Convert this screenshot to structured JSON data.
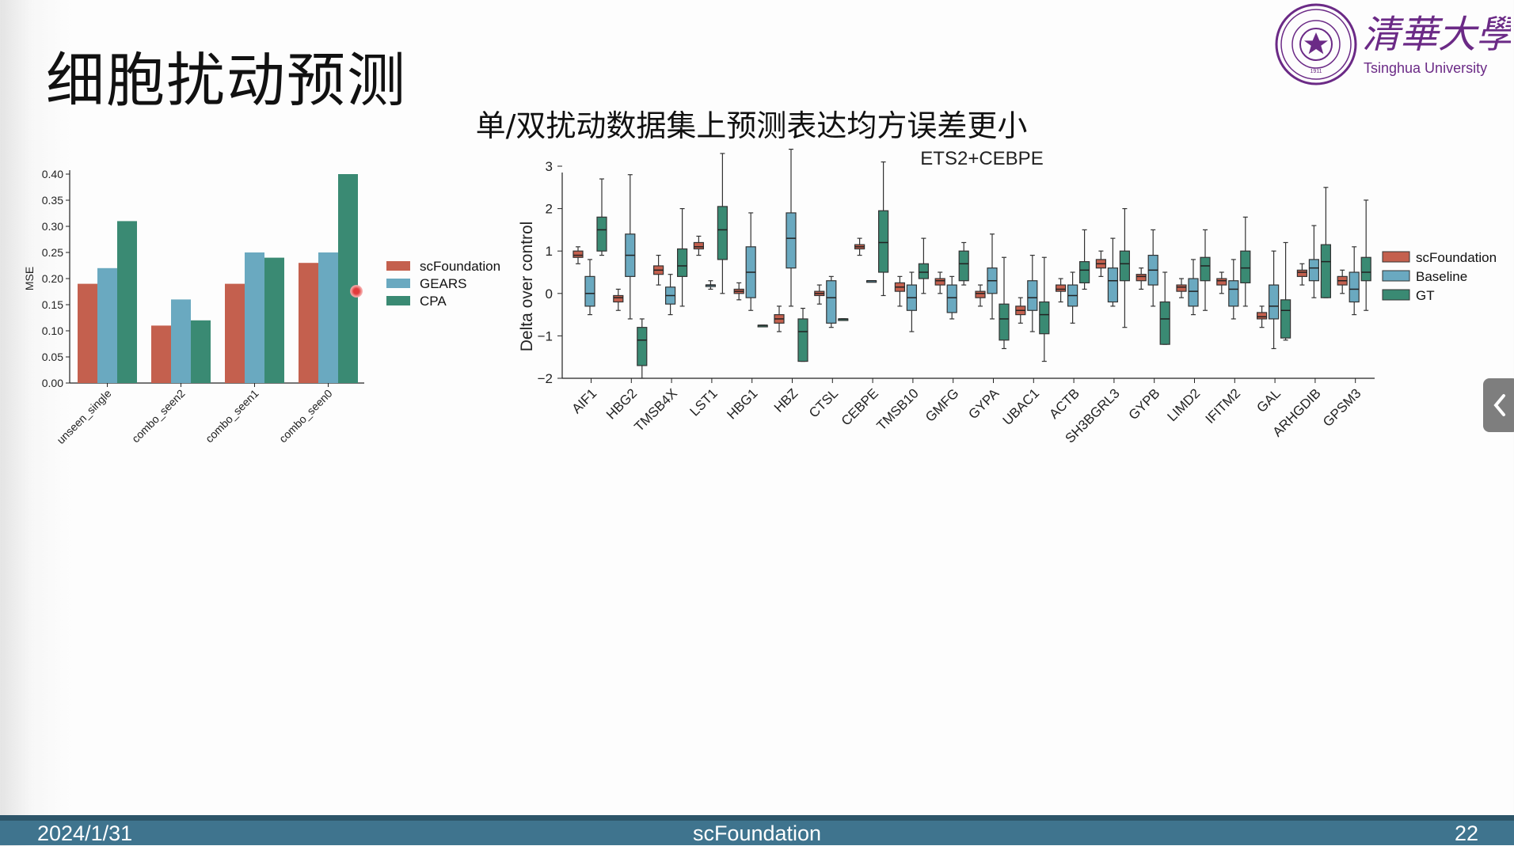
{
  "slide": {
    "title": "细胞扰动预测",
    "subtitle": "单/双扰动数据集上预测表达均方误差更小"
  },
  "logo": {
    "name_cn": "清華大學",
    "name_en": "Tsinghua University",
    "seal_year": "1911"
  },
  "footer": {
    "date": "2024/1/31",
    "center": "scFoundation",
    "page": "22"
  },
  "colors": {
    "scFoundation": "#c4604e",
    "GEARS": "#6aa9c0",
    "CPA": "#3a8a73",
    "footer": "#3f748e"
  },
  "chart_data": [
    {
      "type": "bar",
      "title": "",
      "xlabel": "",
      "ylabel": "MSE",
      "ylim": [
        0,
        0.4
      ],
      "yticks": [
        "0.00",
        "0.05",
        "0.10",
        "0.15",
        "0.20",
        "0.25",
        "0.30",
        "0.35",
        "0.40"
      ],
      "categories": [
        "unseen_single",
        "combo_seen2",
        "combo_seen1",
        "combo_seen0"
      ],
      "series": [
        {
          "name": "scFoundation",
          "color": "#c4604e",
          "values": [
            0.19,
            0.11,
            0.19,
            0.23
          ]
        },
        {
          "name": "GEARS",
          "color": "#6aa9c0",
          "values": [
            0.22,
            0.16,
            0.25,
            0.25
          ]
        },
        {
          "name": "CPA",
          "color": "#3a8a73",
          "values": [
            0.31,
            0.12,
            0.24,
            0.4
          ]
        }
      ],
      "legend": [
        "scFoundation",
        "GEARS",
        "CPA"
      ],
      "legend_position": "right"
    },
    {
      "type": "box",
      "title": "ETS2+CEBPE",
      "xlabel": "",
      "ylabel": "Delta over control",
      "ylim": [
        -2,
        3
      ],
      "yticks": [
        "−2",
        "−1",
        "0",
        "1",
        "2",
        "3"
      ],
      "categories": [
        "AIF1",
        "HBG2",
        "TMSB4X",
        "LST1",
        "HBG1",
        "HBZ",
        "CTSL",
        "CEBPE",
        "TMSB10",
        "GMFG",
        "GYPA",
        "UBAC1",
        "ACTB",
        "SH3BGRL3",
        "GYPB",
        "LIMD2",
        "IFITM2",
        "GAL",
        "ARHGDIB",
        "GPSM3"
      ],
      "legend": [
        "scFoundation",
        "Baseline",
        "GT"
      ],
      "legend_position": "right",
      "series": [
        {
          "name": "scFoundation",
          "color": "#c4604e",
          "boxes": [
            [
              0.7,
              0.85,
              0.9,
              1.0,
              1.1
            ],
            [
              -0.4,
              -0.2,
              -0.1,
              -0.05,
              0.1
            ],
            [
              0.2,
              0.45,
              0.55,
              0.65,
              0.9
            ],
            [
              0.9,
              1.05,
              1.1,
              1.2,
              1.35
            ],
            [
              -0.15,
              0.0,
              0.05,
              0.1,
              0.25
            ],
            [
              -0.9,
              -0.7,
              -0.6,
              -0.5,
              -0.3
            ],
            [
              -0.25,
              -0.05,
              0.0,
              0.05,
              0.2
            ],
            [
              0.9,
              1.05,
              1.1,
              1.15,
              1.3
            ],
            [
              -0.3,
              0.05,
              0.15,
              0.25,
              0.4
            ],
            [
              0.0,
              0.2,
              0.3,
              0.35,
              0.5
            ],
            [
              -0.3,
              -0.1,
              0.0,
              0.05,
              0.2
            ],
            [
              -0.7,
              -0.5,
              -0.4,
              -0.3,
              -0.1
            ],
            [
              -0.2,
              0.05,
              0.1,
              0.2,
              0.35
            ],
            [
              0.4,
              0.6,
              0.7,
              0.8,
              1.0
            ],
            [
              0.1,
              0.3,
              0.4,
              0.45,
              0.6
            ],
            [
              -0.1,
              0.05,
              0.15,
              0.2,
              0.35
            ],
            [
              0.0,
              0.2,
              0.3,
              0.35,
              0.5
            ],
            [
              -0.8,
              -0.6,
              -0.55,
              -0.45,
              -0.3
            ],
            [
              0.2,
              0.4,
              0.5,
              0.55,
              0.7
            ],
            [
              0.0,
              0.2,
              0.3,
              0.4,
              0.55
            ]
          ]
        },
        {
          "name": "Baseline",
          "color": "#6aa9c0",
          "boxes": [
            [
              -0.5,
              -0.3,
              0.0,
              0.4,
              0.8
            ],
            [
              -0.6,
              0.4,
              0.9,
              1.4,
              2.8
            ],
            [
              -0.5,
              -0.25,
              -0.05,
              0.15,
              0.45
            ],
            [
              0.1,
              0.2,
              0.2,
              0.2,
              0.3
            ],
            [
              -0.4,
              -0.1,
              0.5,
              1.1,
              1.9
            ],
            [
              -0.3,
              0.6,
              1.3,
              1.9,
              3.4
            ],
            [
              -0.8,
              -0.7,
              -0.1,
              0.3,
              0.4
            ],
            [
              0.3,
              0.3,
              0.3,
              0.3,
              0.3
            ],
            [
              -0.9,
              -0.4,
              -0.1,
              0.2,
              0.5
            ],
            [
              -0.6,
              -0.45,
              -0.1,
              0.2,
              0.4
            ],
            [
              -0.6,
              0.0,
              0.3,
              0.6,
              1.4
            ],
            [
              -0.9,
              -0.4,
              -0.1,
              0.3,
              0.9
            ],
            [
              -0.7,
              -0.3,
              -0.05,
              0.2,
              0.5
            ],
            [
              -0.3,
              -0.2,
              0.3,
              0.6,
              1.3
            ],
            [
              -0.3,
              0.2,
              0.55,
              0.9,
              1.5
            ],
            [
              -0.5,
              -0.3,
              0.05,
              0.35,
              0.8
            ],
            [
              -0.6,
              -0.3,
              0.1,
              0.3,
              0.8
            ],
            [
              -1.3,
              -0.6,
              -0.3,
              0.2,
              1.0
            ],
            [
              -0.1,
              0.3,
              0.6,
              0.8,
              1.6
            ],
            [
              -0.5,
              -0.2,
              0.1,
              0.5,
              1.1
            ]
          ]
        },
        {
          "name": "GT",
          "color": "#3a8a73",
          "boxes": [
            [
              0.9,
              1.0,
              1.5,
              1.8,
              2.7
            ],
            [
              -2.0,
              -1.7,
              -1.1,
              -0.8,
              -0.6
            ],
            [
              -0.3,
              0.4,
              0.65,
              1.05,
              2.0
            ],
            [
              0.0,
              0.8,
              1.5,
              2.05,
              3.3
            ],
            [
              -0.75,
              -0.75,
              -0.75,
              -0.75,
              -0.75
            ],
            [
              -1.6,
              -1.6,
              -0.9,
              -0.6,
              -0.35
            ],
            [
              -0.6,
              -0.6,
              -0.6,
              -0.6,
              -0.6
            ],
            [
              -0.05,
              0.5,
              1.2,
              1.95,
              3.1
            ],
            [
              0.0,
              0.35,
              0.5,
              0.7,
              1.3
            ],
            [
              0.2,
              0.3,
              0.7,
              1.0,
              1.2
            ],
            [
              -1.3,
              -1.1,
              -0.6,
              -0.25,
              0.85
            ],
            [
              -1.6,
              -0.95,
              -0.5,
              -0.2,
              0.85
            ],
            [
              0.1,
              0.25,
              0.55,
              0.75,
              1.5
            ],
            [
              -0.8,
              0.3,
              0.7,
              1.0,
              2.0
            ],
            [
              -1.2,
              -1.2,
              -0.6,
              -0.2,
              0.5
            ],
            [
              -0.4,
              0.3,
              0.65,
              0.85,
              1.5
            ],
            [
              -0.3,
              0.25,
              0.6,
              1.0,
              1.8
            ],
            [
              -1.1,
              -1.05,
              -0.4,
              -0.15,
              1.2
            ],
            [
              -0.1,
              -0.1,
              0.75,
              1.15,
              2.5
            ],
            [
              -0.4,
              0.3,
              0.5,
              0.85,
              2.2
            ]
          ]
        }
      ]
    }
  ]
}
